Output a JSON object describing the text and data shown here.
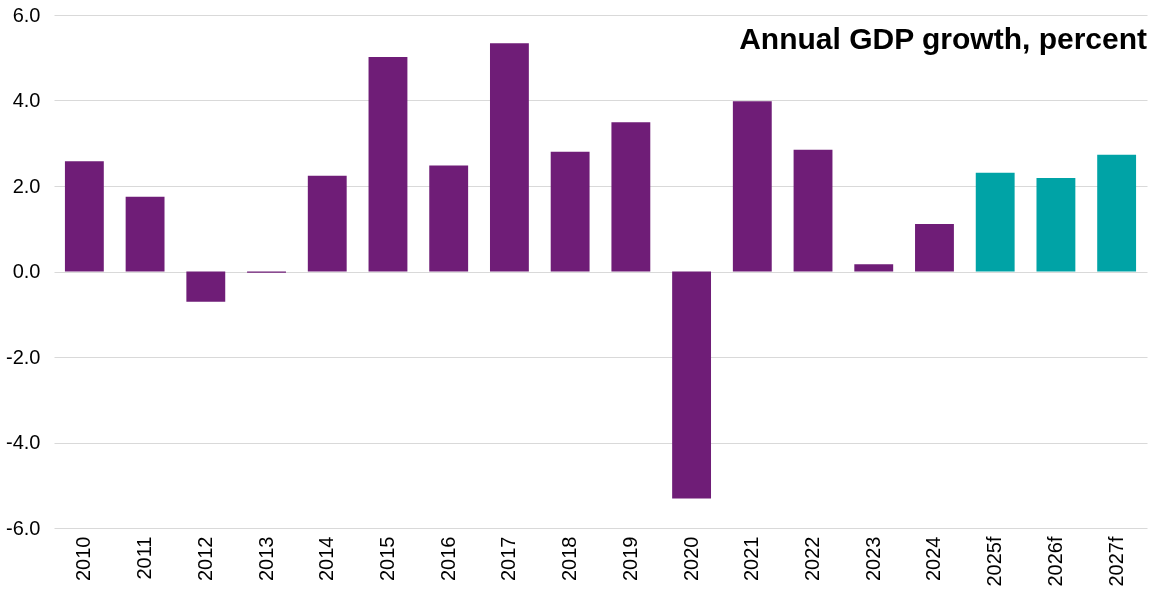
{
  "chart_data": {
    "type": "bar",
    "title": "Annual GDP growth, percent",
    "categories": [
      "2010",
      "2011",
      "2012",
      "2013",
      "2014",
      "2015",
      "2016",
      "2017",
      "2018",
      "2019",
      "2020",
      "2021",
      "2022",
      "2023",
      "2024",
      "2025f",
      "2026f",
      "2027f"
    ],
    "values": [
      2.58,
      1.75,
      -0.71,
      -0.03,
      2.24,
      5.02,
      2.48,
      5.34,
      2.8,
      3.49,
      -5.31,
      3.98,
      2.85,
      0.17,
      1.11,
      2.31,
      2.19,
      2.73
    ],
    "colors": [
      "#6f1d77",
      "#6f1d77",
      "#6f1d77",
      "#6f1d77",
      "#6f1d77",
      "#6f1d77",
      "#6f1d77",
      "#6f1d77",
      "#6f1d77",
      "#6f1d77",
      "#6f1d77",
      "#6f1d77",
      "#6f1d77",
      "#6f1d77",
      "#6f1d77",
      "#00a3a6",
      "#00a3a6",
      "#00a3a6"
    ],
    "ylim": [
      -6,
      6
    ],
    "yticks": [
      {
        "value": -6,
        "label": "-6.0"
      },
      {
        "value": -4,
        "label": "-4.0"
      },
      {
        "value": -2,
        "label": "-2.0"
      },
      {
        "value": 0,
        "label": "0.0"
      },
      {
        "value": 2,
        "label": "2.0"
      },
      {
        "value": 4,
        "label": "4.0"
      },
      {
        "value": 6,
        "label": "6.0"
      }
    ],
    "grid": "y"
  }
}
